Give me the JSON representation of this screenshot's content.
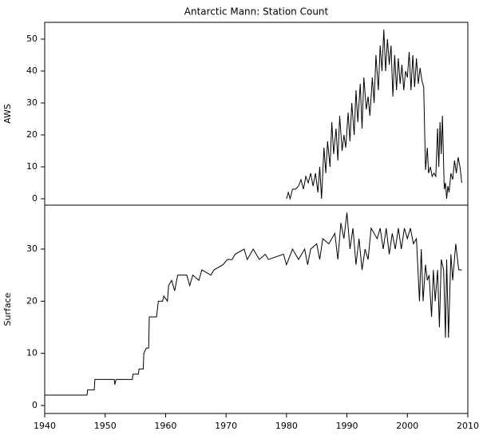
{
  "chart_data": [
    {
      "type": "line",
      "title": "Antarctic Mann: Station Count",
      "ylabel": "AWS",
      "x": [
        1980.0,
        1980.3,
        1980.6,
        1981,
        1981.5,
        1982,
        1982.4,
        1982.8,
        1983.2,
        1983.6,
        1984,
        1984.4,
        1984.8,
        1985.2,
        1985.5,
        1985.8,
        1986.2,
        1986.5,
        1986.8,
        1987.2,
        1987.5,
        1987.8,
        1988.2,
        1988.5,
        1988.8,
        1989.2,
        1989.5,
        1989.8,
        1990.2,
        1990.5,
        1990.8,
        1991.2,
        1991.5,
        1991.8,
        1992.2,
        1992.5,
        1992.8,
        1993.2,
        1993.5,
        1993.8,
        1994.2,
        1994.5,
        1994.8,
        1995.2,
        1995.5,
        1995.8,
        1996.1,
        1996.4,
        1996.7,
        1997,
        1997.3,
        1997.6,
        1997.9,
        1998.2,
        1998.5,
        1998.8,
        1999.1,
        1999.4,
        1999.7,
        2000,
        2000.3,
        2000.6,
        2000.9,
        2001.2,
        2001.5,
        2001.8,
        2002.1,
        2002.4,
        2002.7,
        2003,
        2003.3,
        2003.5,
        2003.8,
        2004.1,
        2004.4,
        2004.7,
        2005,
        2005.2,
        2005.4,
        2005.6,
        2005.8,
        2006.1,
        2006.3,
        2006.5,
        2006.7,
        2006.9,
        2007.2,
        2007.5,
        2007.8,
        2008.1,
        2008.4,
        2008.7,
        2009
      ],
      "series": [
        {
          "color": "#000000",
          "values": [
            0,
            2,
            0,
            3,
            3,
            4,
            6,
            3,
            7,
            5,
            8,
            4,
            8,
            2,
            10,
            0,
            16,
            8,
            18,
            10,
            24,
            14,
            22,
            12,
            26,
            15,
            20,
            16,
            27,
            18,
            30,
            20,
            34,
            24,
            36,
            22,
            38,
            28,
            32,
            26,
            38,
            30,
            45,
            34,
            48,
            40,
            53,
            40,
            50,
            42,
            48,
            32,
            45,
            34,
            44,
            36,
            42,
            34,
            40,
            38,
            46,
            34,
            45,
            35,
            44,
            36,
            41,
            37,
            35,
            9,
            16,
            8,
            10,
            7,
            8,
            7,
            22,
            10,
            24,
            14,
            26,
            3,
            5,
            0,
            4,
            2,
            8,
            6,
            12,
            8,
            13,
            10,
            5
          ]
        }
      ],
      "xlim": [
        1940,
        2010
      ],
      "ylim": [
        -2,
        55.25
      ],
      "yticks": [
        0,
        10,
        20,
        30,
        40,
        50
      ]
    },
    {
      "type": "line",
      "ylabel": "Surface",
      "x": [
        1940,
        1947,
        1947.1,
        1948.2,
        1948.3,
        1951.5,
        1951.6,
        1951.8,
        1954.5,
        1954.6,
        1955.5,
        1955.6,
        1956.3,
        1956.4,
        1956.8,
        1957.2,
        1957.3,
        1958.5,
        1958.8,
        1959.5,
        1959.7,
        1960.3,
        1960.5,
        1961,
        1961.5,
        1962,
        1963.5,
        1964,
        1964.5,
        1965.5,
        1966,
        1967.5,
        1968,
        1969.5,
        1970.2,
        1971,
        1971.5,
        1973,
        1973.5,
        1974.5,
        1975.5,
        1976.5,
        1977,
        1979.5,
        1980,
        1981,
        1982,
        1983,
        1983.5,
        1984,
        1985,
        1985.5,
        1986,
        1987,
        1988,
        1988.5,
        1989,
        1989.5,
        1990,
        1990.5,
        1991,
        1991.5,
        1992,
        1992.5,
        1993,
        1993.5,
        1994,
        1995,
        1995.5,
        1996,
        1996.5,
        1997,
        1997.5,
        1998,
        1998.5,
        1999,
        1999.5,
        2000,
        2000.5,
        2001,
        2001.5,
        2002,
        2002.3,
        2002.6,
        2003,
        2003.3,
        2003.6,
        2004,
        2004.3,
        2004.6,
        2005,
        2005.3,
        2005.6,
        2006,
        2006.3,
        2006.5,
        2006.8,
        2007.2,
        2007.5,
        2008,
        2008.5,
        2009
      ],
      "series": [
        {
          "color": "#000000",
          "values": [
            2,
            2,
            3,
            3,
            5,
            5,
            4,
            5,
            5,
            6,
            6,
            7,
            7,
            10,
            11,
            11,
            17,
            17,
            20,
            20,
            21,
            20,
            23,
            24,
            22,
            25,
            25,
            23,
            25,
            24,
            26,
            25,
            26,
            27,
            28,
            28,
            29,
            30,
            28,
            30,
            28,
            29,
            28,
            29,
            27,
            30,
            28,
            30,
            27,
            30,
            31,
            28,
            32,
            31,
            33,
            28,
            35,
            32,
            37,
            30,
            34,
            27,
            32,
            26,
            30,
            28,
            34,
            32,
            34,
            30,
            34,
            29,
            33,
            30,
            34,
            30,
            34,
            32,
            34,
            31,
            32,
            20,
            30,
            20,
            27,
            24,
            25,
            17,
            26,
            20,
            26,
            15,
            28,
            26,
            13,
            28,
            13,
            29,
            24,
            31,
            26,
            26
          ]
        }
      ],
      "xlim": [
        1940,
        2010
      ],
      "xticks": [
        1940,
        1950,
        1960,
        1970,
        1980,
        1990,
        2000,
        2010
      ],
      "ylim": [
        -1.53,
        38.42
      ],
      "yticks": [
        0,
        10,
        20,
        30
      ]
    }
  ]
}
